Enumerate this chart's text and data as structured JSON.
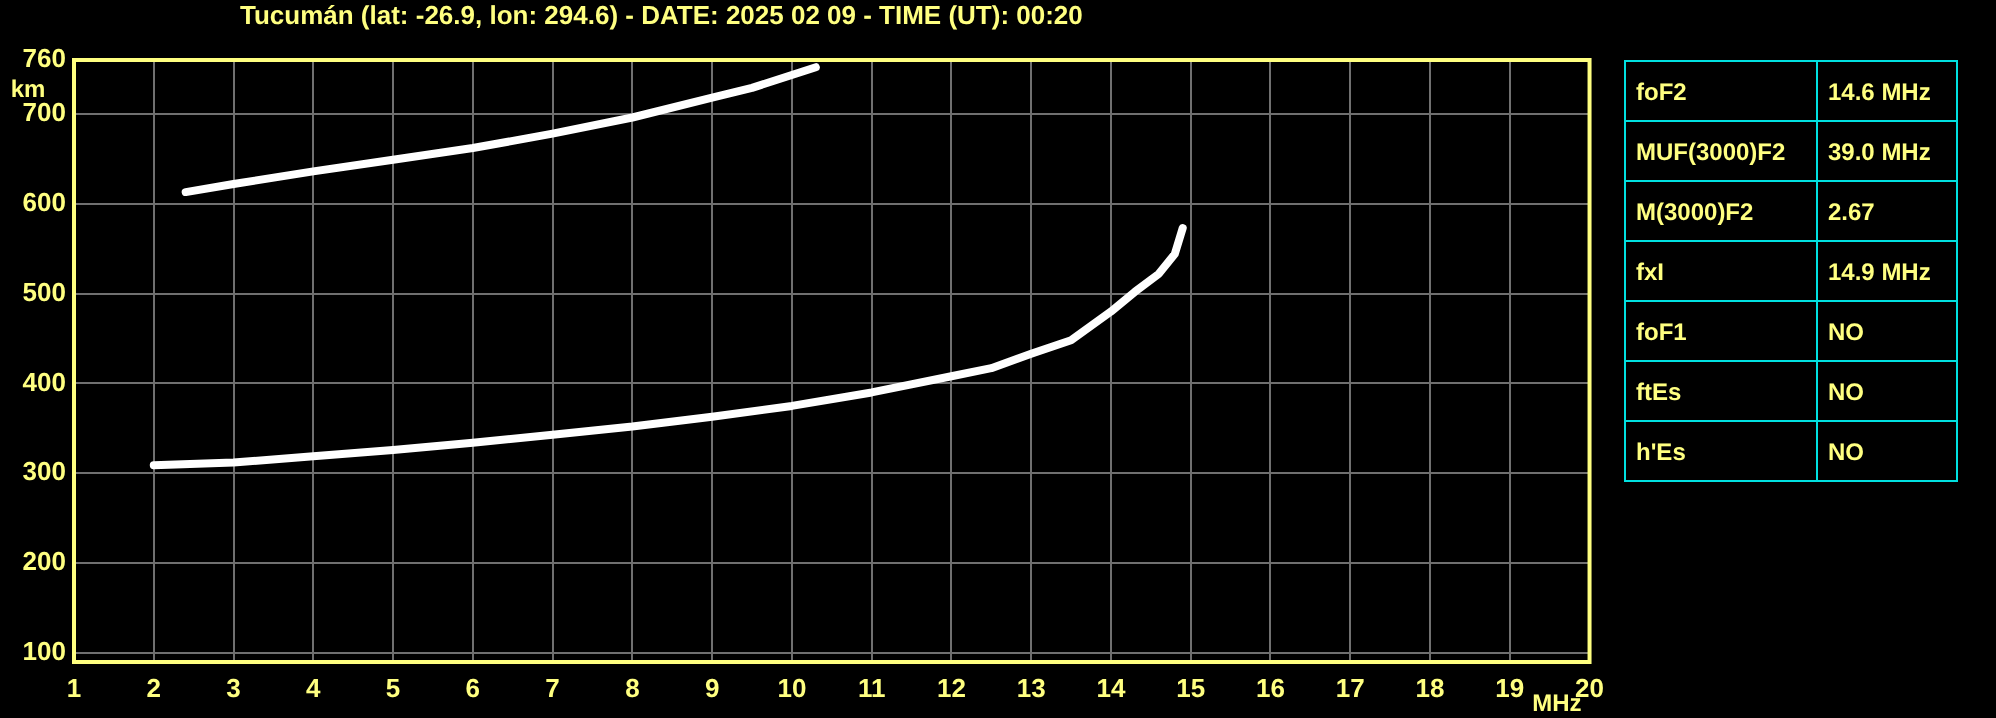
{
  "chart_data": [
    {
      "type": "line",
      "title": "Tucumán (lat: -26.9, lon: 294.6) - DATE: 2025 02 09 - TIME (UT): 00:20",
      "xlabel": "MHz",
      "ylabel": "km",
      "xlim": [
        1,
        20
      ],
      "xticks": [
        1,
        2,
        3,
        4,
        5,
        6,
        7,
        8,
        9,
        10,
        11,
        12,
        13,
        14,
        15,
        16,
        17,
        18,
        19,
        20
      ],
      "ylim": [
        90,
        760
      ],
      "yticks": [
        100,
        200,
        300,
        400,
        500,
        600,
        700,
        760
      ],
      "grid": true,
      "marker": "none",
      "line_style": "solid",
      "series": [
        {
          "color": "#ffffff",
          "x": [
            2,
            3,
            4,
            5,
            6,
            7,
            8,
            9,
            10,
            11,
            12,
            12.5,
            13,
            13.5,
            14,
            14.3,
            14.6,
            14.8,
            14.9
          ],
          "values": [
            309,
            312,
            319,
            326,
            334,
            343,
            352,
            363,
            375,
            390,
            408,
            417,
            433,
            448,
            480,
            502,
            522,
            544,
            573
          ]
        },
        {
          "color": "#ffffff",
          "x": [
            2.4,
            3,
            4,
            5,
            6,
            7,
            8,
            9,
            9.5,
            10.3
          ],
          "values": [
            613,
            622,
            636,
            649,
            662,
            678,
            696,
            718,
            729,
            752
          ]
        }
      ]
    },
    {
      "type": "other",
      "annotations": [
        "foF2",
        "14.6 MHz",
        "MUF(3000)F2",
        "39.0 MHz",
        "M(3000)F2",
        "2.67",
        "fxI",
        "14.9 MHz",
        "foF1",
        "NO",
        "ftEs",
        "NO",
        "h'Es",
        "NO"
      ]
    }
  ]
}
